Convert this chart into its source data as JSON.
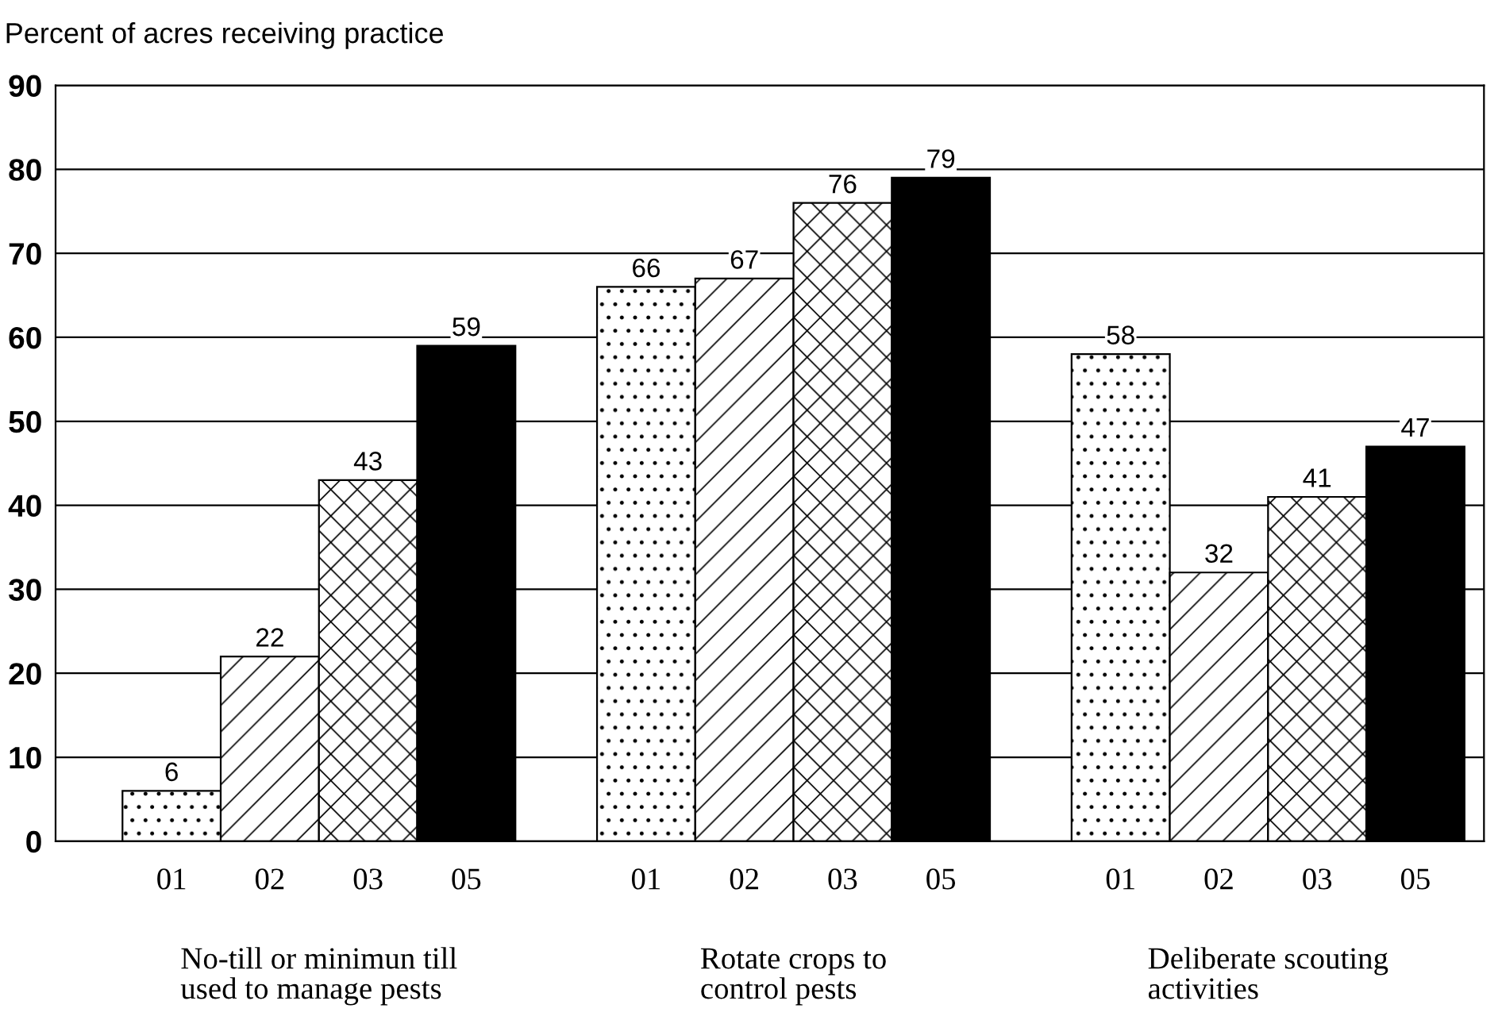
{
  "chart_data": {
    "type": "bar",
    "ylabel": "Percent of acres receiving practice",
    "categories": [
      "No-till or minimun till\nused to manage pests",
      "Rotate crops to\ncontrol pests",
      "Deliberate scouting\nactivities"
    ],
    "series": [
      {
        "name": "01",
        "color": "#ffffff",
        "values": [
          6,
          66,
          58
        ]
      },
      {
        "name": "02",
        "color": "#ffffff",
        "values": [
          22,
          67,
          32
        ]
      },
      {
        "name": "03",
        "color": "#ffffff",
        "values": [
          43,
          76,
          41
        ]
      },
      {
        "name": "05",
        "color": "#000000",
        "values": [
          59,
          79,
          47
        ]
      }
    ],
    "ylim": [
      0,
      90
    ],
    "yticks": [
      0,
      10,
      20,
      30,
      40,
      50,
      60,
      70,
      80,
      90
    ],
    "grid": "y",
    "data_labels": true,
    "legend": false
  }
}
